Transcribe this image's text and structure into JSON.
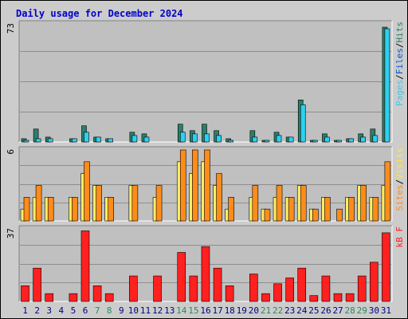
{
  "title": "Daily usage for December 2024",
  "colors": {
    "frame_bg": "#cccccc",
    "panel_bg": "#c0c0c0",
    "grid": "#8e8e8e",
    "hits": "#2a7f6b",
    "files": "#2fd0f0",
    "pages": "#33d0e8",
    "visits": "#ffee66",
    "sites": "#ff8c1a",
    "kbf": "#ff2020",
    "day_normal": "#000080",
    "day_weekend": "#2a8a5a",
    "label_top_pages": "#2fd0f0",
    "label_top_files": "#0058c8",
    "label_top_hits": "#2a7f6b",
    "label_mid_sites": "#ff8c1a",
    "label_mid_visits": "#ffe640",
    "label_bot_kbf": "#ff2020",
    "slash": "#000000"
  },
  "chart_data": [
    {
      "type": "bar",
      "panel": "top",
      "ymax_label": "73",
      "ylim": [
        0,
        73
      ],
      "categories": [
        "1",
        "2",
        "3",
        "4",
        "5",
        "6",
        "7",
        "8",
        "9",
        "10",
        "11",
        "12",
        "13",
        "14",
        "15",
        "16",
        "17",
        "18",
        "19",
        "20",
        "21",
        "22",
        "23",
        "24",
        "25",
        "26",
        "27",
        "28",
        "29",
        "30",
        "31"
      ],
      "series": [
        {
          "name": "Hits",
          "values": [
            2,
            8,
            3,
            0,
            2,
            10,
            3,
            2,
            0,
            6,
            5,
            0,
            0,
            11,
            7,
            11,
            7,
            2,
            0,
            7,
            1,
            6,
            3,
            26,
            1,
            5,
            1,
            2,
            5,
            8,
            71
          ]
        },
        {
          "name": "Files",
          "values": [
            1,
            2,
            2,
            0,
            2,
            6,
            3,
            2,
            0,
            4,
            3,
            0,
            0,
            6,
            5,
            5,
            4,
            1,
            0,
            3,
            1,
            4,
            3,
            23,
            1,
            3,
            1,
            2,
            3,
            4,
            70
          ]
        },
        {
          "name": "Pages",
          "values": [
            1,
            2,
            2,
            0,
            2,
            6,
            3,
            2,
            0,
            4,
            3,
            0,
            0,
            6,
            5,
            5,
            4,
            1,
            0,
            3,
            1,
            4,
            3,
            23,
            1,
            3,
            1,
            2,
            3,
            4,
            70
          ]
        }
      ],
      "axis_label": [
        "Pages",
        "/",
        "Files",
        "/",
        "Hits"
      ]
    },
    {
      "type": "bar",
      "panel": "middle",
      "ymax_label": "6",
      "ylim": [
        0,
        6
      ],
      "series": [
        {
          "name": "Visits",
          "values": [
            1,
            2,
            2,
            0,
            2,
            4,
            3,
            2,
            0,
            3,
            0,
            2,
            0,
            5,
            4,
            5,
            3,
            1,
            0,
            2,
            1,
            2,
            2,
            3,
            1,
            2,
            0,
            2,
            3,
            2,
            3
          ]
        },
        {
          "name": "Sites",
          "values": [
            2,
            3,
            2,
            0,
            2,
            5,
            3,
            2,
            0,
            3,
            0,
            3,
            0,
            6,
            6,
            6,
            4,
            2,
            0,
            3,
            1,
            3,
            2,
            3,
            1,
            2,
            1,
            2,
            3,
            2,
            5
          ]
        }
      ],
      "axis_label": [
        "Sites",
        "/",
        "Visits"
      ]
    },
    {
      "type": "bar",
      "panel": "bottom",
      "ymax_label": "37",
      "ylim": [
        0,
        37
      ],
      "series": [
        {
          "name": "kB F",
          "values": [
            8,
            17,
            4,
            0,
            4,
            36,
            8,
            4,
            0,
            13,
            0,
            13,
            0,
            25,
            13,
            28,
            17,
            8,
            0,
            14,
            4,
            9,
            12,
            17,
            3,
            13,
            4,
            4,
            13,
            20,
            35
          ]
        }
      ],
      "axis_label": [
        "kB F"
      ]
    }
  ],
  "day_labels": [
    {
      "text": "1",
      "weekend": false
    },
    {
      "text": "2",
      "weekend": false
    },
    {
      "text": "3",
      "weekend": false
    },
    {
      "text": "4",
      "weekend": false
    },
    {
      "text": "5",
      "weekend": false
    },
    {
      "text": "6",
      "weekend": false
    },
    {
      "text": "7",
      "weekend": true
    },
    {
      "text": "8",
      "weekend": true
    },
    {
      "text": "9",
      "weekend": false
    },
    {
      "text": "10",
      "weekend": false
    },
    {
      "text": "11",
      "weekend": false
    },
    {
      "text": "12",
      "weekend": false
    },
    {
      "text": "13",
      "weekend": false
    },
    {
      "text": "14",
      "weekend": true
    },
    {
      "text": "15",
      "weekend": true
    },
    {
      "text": "16",
      "weekend": false
    },
    {
      "text": "17",
      "weekend": false
    },
    {
      "text": "18",
      "weekend": false
    },
    {
      "text": "19",
      "weekend": false
    },
    {
      "text": "20",
      "weekend": false
    },
    {
      "text": "21",
      "weekend": true
    },
    {
      "text": "22",
      "weekend": true
    },
    {
      "text": "23",
      "weekend": false
    },
    {
      "text": "24",
      "weekend": false
    },
    {
      "text": "25",
      "weekend": false
    },
    {
      "text": "26",
      "weekend": false
    },
    {
      "text": "27",
      "weekend": false
    },
    {
      "text": "28",
      "weekend": true
    },
    {
      "text": "29",
      "weekend": true
    },
    {
      "text": "30",
      "weekend": false
    },
    {
      "text": "31",
      "weekend": false
    }
  ]
}
